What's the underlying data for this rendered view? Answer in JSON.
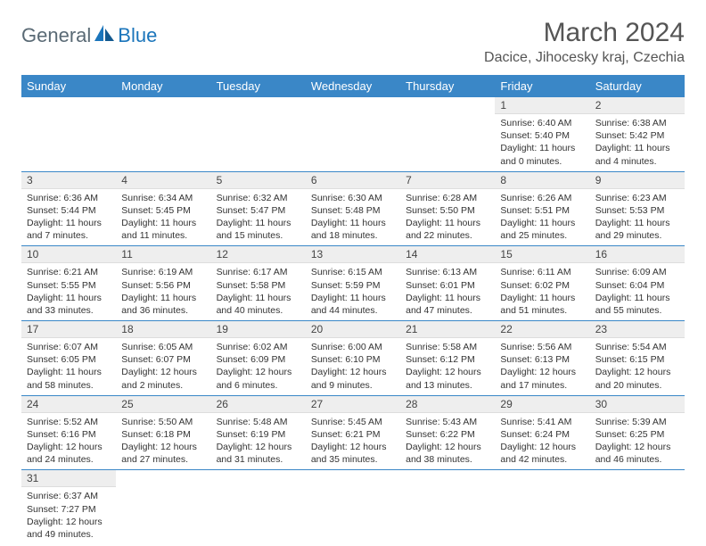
{
  "brand": {
    "text1": "General",
    "text2": "Blue"
  },
  "colors": {
    "header_bg": "#3a87c7",
    "header_text": "#ffffff",
    "daynum_bg": "#eeeeee",
    "brand_gray": "#5a6a75",
    "brand_blue": "#1b75bb",
    "border": "#3a87c7"
  },
  "title": "March 2024",
  "location": "Dacice, Jihocesky kraj, Czechia",
  "day_headers": [
    "Sunday",
    "Monday",
    "Tuesday",
    "Wednesday",
    "Thursday",
    "Friday",
    "Saturday"
  ],
  "weeks": [
    [
      null,
      null,
      null,
      null,
      null,
      {
        "n": "1",
        "sunrise": "Sunrise: 6:40 AM",
        "sunset": "Sunset: 5:40 PM",
        "daylight": "Daylight: 11 hours and 0 minutes."
      },
      {
        "n": "2",
        "sunrise": "Sunrise: 6:38 AM",
        "sunset": "Sunset: 5:42 PM",
        "daylight": "Daylight: 11 hours and 4 minutes."
      }
    ],
    [
      {
        "n": "3",
        "sunrise": "Sunrise: 6:36 AM",
        "sunset": "Sunset: 5:44 PM",
        "daylight": "Daylight: 11 hours and 7 minutes."
      },
      {
        "n": "4",
        "sunrise": "Sunrise: 6:34 AM",
        "sunset": "Sunset: 5:45 PM",
        "daylight": "Daylight: 11 hours and 11 minutes."
      },
      {
        "n": "5",
        "sunrise": "Sunrise: 6:32 AM",
        "sunset": "Sunset: 5:47 PM",
        "daylight": "Daylight: 11 hours and 15 minutes."
      },
      {
        "n": "6",
        "sunrise": "Sunrise: 6:30 AM",
        "sunset": "Sunset: 5:48 PM",
        "daylight": "Daylight: 11 hours and 18 minutes."
      },
      {
        "n": "7",
        "sunrise": "Sunrise: 6:28 AM",
        "sunset": "Sunset: 5:50 PM",
        "daylight": "Daylight: 11 hours and 22 minutes."
      },
      {
        "n": "8",
        "sunrise": "Sunrise: 6:26 AM",
        "sunset": "Sunset: 5:51 PM",
        "daylight": "Daylight: 11 hours and 25 minutes."
      },
      {
        "n": "9",
        "sunrise": "Sunrise: 6:23 AM",
        "sunset": "Sunset: 5:53 PM",
        "daylight": "Daylight: 11 hours and 29 minutes."
      }
    ],
    [
      {
        "n": "10",
        "sunrise": "Sunrise: 6:21 AM",
        "sunset": "Sunset: 5:55 PM",
        "daylight": "Daylight: 11 hours and 33 minutes."
      },
      {
        "n": "11",
        "sunrise": "Sunrise: 6:19 AM",
        "sunset": "Sunset: 5:56 PM",
        "daylight": "Daylight: 11 hours and 36 minutes."
      },
      {
        "n": "12",
        "sunrise": "Sunrise: 6:17 AM",
        "sunset": "Sunset: 5:58 PM",
        "daylight": "Daylight: 11 hours and 40 minutes."
      },
      {
        "n": "13",
        "sunrise": "Sunrise: 6:15 AM",
        "sunset": "Sunset: 5:59 PM",
        "daylight": "Daylight: 11 hours and 44 minutes."
      },
      {
        "n": "14",
        "sunrise": "Sunrise: 6:13 AM",
        "sunset": "Sunset: 6:01 PM",
        "daylight": "Daylight: 11 hours and 47 minutes."
      },
      {
        "n": "15",
        "sunrise": "Sunrise: 6:11 AM",
        "sunset": "Sunset: 6:02 PM",
        "daylight": "Daylight: 11 hours and 51 minutes."
      },
      {
        "n": "16",
        "sunrise": "Sunrise: 6:09 AM",
        "sunset": "Sunset: 6:04 PM",
        "daylight": "Daylight: 11 hours and 55 minutes."
      }
    ],
    [
      {
        "n": "17",
        "sunrise": "Sunrise: 6:07 AM",
        "sunset": "Sunset: 6:05 PM",
        "daylight": "Daylight: 11 hours and 58 minutes."
      },
      {
        "n": "18",
        "sunrise": "Sunrise: 6:05 AM",
        "sunset": "Sunset: 6:07 PM",
        "daylight": "Daylight: 12 hours and 2 minutes."
      },
      {
        "n": "19",
        "sunrise": "Sunrise: 6:02 AM",
        "sunset": "Sunset: 6:09 PM",
        "daylight": "Daylight: 12 hours and 6 minutes."
      },
      {
        "n": "20",
        "sunrise": "Sunrise: 6:00 AM",
        "sunset": "Sunset: 6:10 PM",
        "daylight": "Daylight: 12 hours and 9 minutes."
      },
      {
        "n": "21",
        "sunrise": "Sunrise: 5:58 AM",
        "sunset": "Sunset: 6:12 PM",
        "daylight": "Daylight: 12 hours and 13 minutes."
      },
      {
        "n": "22",
        "sunrise": "Sunrise: 5:56 AM",
        "sunset": "Sunset: 6:13 PM",
        "daylight": "Daylight: 12 hours and 17 minutes."
      },
      {
        "n": "23",
        "sunrise": "Sunrise: 5:54 AM",
        "sunset": "Sunset: 6:15 PM",
        "daylight": "Daylight: 12 hours and 20 minutes."
      }
    ],
    [
      {
        "n": "24",
        "sunrise": "Sunrise: 5:52 AM",
        "sunset": "Sunset: 6:16 PM",
        "daylight": "Daylight: 12 hours and 24 minutes."
      },
      {
        "n": "25",
        "sunrise": "Sunrise: 5:50 AM",
        "sunset": "Sunset: 6:18 PM",
        "daylight": "Daylight: 12 hours and 27 minutes."
      },
      {
        "n": "26",
        "sunrise": "Sunrise: 5:48 AM",
        "sunset": "Sunset: 6:19 PM",
        "daylight": "Daylight: 12 hours and 31 minutes."
      },
      {
        "n": "27",
        "sunrise": "Sunrise: 5:45 AM",
        "sunset": "Sunset: 6:21 PM",
        "daylight": "Daylight: 12 hours and 35 minutes."
      },
      {
        "n": "28",
        "sunrise": "Sunrise: 5:43 AM",
        "sunset": "Sunset: 6:22 PM",
        "daylight": "Daylight: 12 hours and 38 minutes."
      },
      {
        "n": "29",
        "sunrise": "Sunrise: 5:41 AM",
        "sunset": "Sunset: 6:24 PM",
        "daylight": "Daylight: 12 hours and 42 minutes."
      },
      {
        "n": "30",
        "sunrise": "Sunrise: 5:39 AM",
        "sunset": "Sunset: 6:25 PM",
        "daylight": "Daylight: 12 hours and 46 minutes."
      }
    ],
    [
      {
        "n": "31",
        "sunrise": "Sunrise: 6:37 AM",
        "sunset": "Sunset: 7:27 PM",
        "daylight": "Daylight: 12 hours and 49 minutes."
      },
      null,
      null,
      null,
      null,
      null,
      null
    ]
  ]
}
